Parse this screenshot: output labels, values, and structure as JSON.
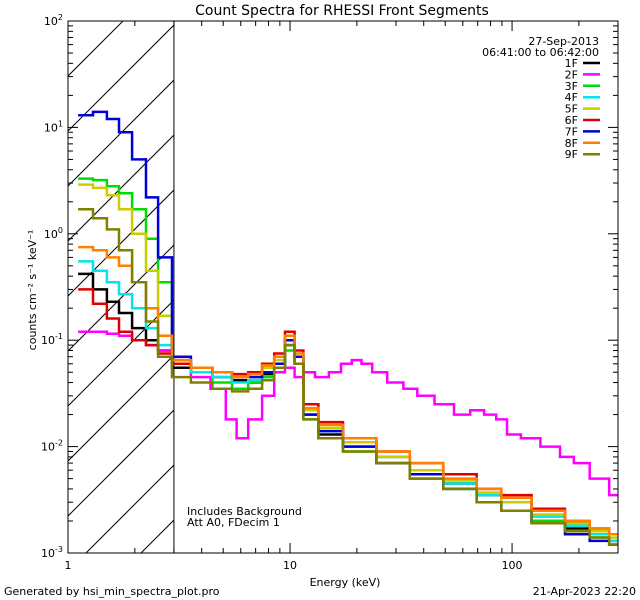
{
  "chart_data": {
    "type": "line",
    "title": "Count Spectra for RHESSI Front Segments",
    "xlabel": "Energy (keV)",
    "ylabel": "counts cm⁻² s⁻¹ keV⁻¹",
    "xscale": "log",
    "yscale": "log",
    "xlim": [
      1,
      300
    ],
    "ylim": [
      0.001,
      100
    ],
    "x_ticks": [
      {
        "value": 1,
        "label": "1"
      },
      {
        "value": 10,
        "label": "10"
      },
      {
        "value": 100,
        "label": "100"
      }
    ],
    "y_ticks": [
      {
        "value": 0.001,
        "base": "10",
        "exp": "-3"
      },
      {
        "value": 0.01,
        "base": "10",
        "exp": "-2"
      },
      {
        "value": 0.1,
        "base": "10",
        "exp": "-1"
      },
      {
        "value": 1,
        "base": "10",
        "exp": "0"
      },
      {
        "value": 10,
        "base": "10",
        "exp": "1"
      },
      {
        "value": 100,
        "base": "10",
        "exp": "2"
      }
    ],
    "hatched_region": [
      1,
      3
    ],
    "legend_position": "top-right",
    "date": "27-Sep-2013",
    "time_range": "06:41:00 to 06:42:00",
    "annotation_lines": [
      "Includes Background",
      "Att A0, FDecim 1"
    ],
    "series": [
      {
        "name": "1F",
        "color": "#000000",
        "x": [
          1.2,
          1.4,
          1.6,
          1.8,
          2.1,
          2.4,
          2.7,
          3.2,
          4,
          5,
          6,
          7,
          8,
          9,
          10,
          11,
          12,
          15,
          20,
          30,
          40,
          60,
          80,
          100,
          150,
          200,
          250,
          300
        ],
        "values": [
          0.42,
          0.3,
          0.23,
          0.18,
          0.13,
          0.1,
          0.08,
          0.055,
          0.05,
          0.045,
          0.042,
          0.04,
          0.048,
          0.06,
          0.09,
          0.06,
          0.02,
          0.013,
          0.01,
          0.008,
          0.006,
          0.0045,
          0.0035,
          0.003,
          0.002,
          0.0017,
          0.0015,
          0.0013
        ]
      },
      {
        "name": "2F",
        "color": "#ff00ff",
        "x": [
          1.2,
          1.4,
          1.6,
          1.8,
          2.1,
          2.4,
          2.7,
          3.2,
          4,
          4.8,
          5.5,
          6,
          7,
          8,
          9,
          10,
          11,
          12,
          14,
          16,
          18,
          20,
          22,
          25,
          30,
          35,
          40,
          50,
          60,
          70,
          80,
          90,
          100,
          120,
          150,
          180,
          200,
          250,
          300
        ],
        "values": [
          0.12,
          0.12,
          0.115,
          0.11,
          0.1,
          0.09,
          0.08,
          0.065,
          0.045,
          0.035,
          0.018,
          0.012,
          0.018,
          0.03,
          0.05,
          0.055,
          0.045,
          0.05,
          0.045,
          0.05,
          0.06,
          0.065,
          0.06,
          0.05,
          0.04,
          0.035,
          0.03,
          0.025,
          0.02,
          0.022,
          0.02,
          0.018,
          0.013,
          0.012,
          0.01,
          0.008,
          0.007,
          0.005,
          0.0035
        ]
      },
      {
        "name": "3F",
        "color": "#00dd00",
        "x": [
          1.2,
          1.4,
          1.6,
          1.8,
          2.1,
          2.4,
          2.7,
          3.2,
          4,
          5,
          6,
          7,
          8,
          9,
          10,
          11,
          12,
          15,
          20,
          30,
          40,
          60,
          80,
          100,
          150,
          200,
          250,
          300
        ],
        "values": [
          3.3,
          3.2,
          2.8,
          2.4,
          1.7,
          0.9,
          0.35,
          0.06,
          0.05,
          0.04,
          0.035,
          0.04,
          0.045,
          0.055,
          0.08,
          0.06,
          0.018,
          0.012,
          0.009,
          0.007,
          0.005,
          0.004,
          0.003,
          0.0025,
          0.002,
          0.0016,
          0.0014,
          0.0012
        ]
      },
      {
        "name": "4F",
        "color": "#00e5ee",
        "x": [
          1.2,
          1.4,
          1.6,
          1.8,
          2.1,
          2.4,
          2.7,
          3.2,
          4,
          5,
          6,
          7,
          8,
          9,
          10,
          11,
          12,
          15,
          20,
          30,
          40,
          60,
          80,
          100,
          150,
          200,
          250,
          300
        ],
        "values": [
          0.55,
          0.45,
          0.35,
          0.27,
          0.2,
          0.13,
          0.09,
          0.06,
          0.05,
          0.045,
          0.04,
          0.042,
          0.05,
          0.06,
          0.1,
          0.07,
          0.02,
          0.014,
          0.01,
          0.008,
          0.006,
          0.0045,
          0.0035,
          0.003,
          0.0022,
          0.0018,
          0.0015,
          0.0013
        ]
      },
      {
        "name": "5F",
        "color": "#cccc00",
        "x": [
          1.2,
          1.4,
          1.6,
          1.8,
          2.1,
          2.4,
          2.7,
          3.2,
          4,
          5,
          6,
          7,
          8,
          9,
          10,
          11,
          12,
          15,
          20,
          30,
          40,
          60,
          80,
          100,
          150,
          200,
          250,
          300
        ],
        "values": [
          2.9,
          2.7,
          2.3,
          1.7,
          1.0,
          0.45,
          0.17,
          0.065,
          0.055,
          0.05,
          0.045,
          0.048,
          0.055,
          0.065,
          0.1,
          0.07,
          0.022,
          0.015,
          0.011,
          0.008,
          0.006,
          0.0048,
          0.0037,
          0.003,
          0.0023,
          0.0019,
          0.0016,
          0.0014
        ]
      },
      {
        "name": "6F",
        "color": "#dd0000",
        "x": [
          1.2,
          1.4,
          1.6,
          1.8,
          2.1,
          2.4,
          2.7,
          3.2,
          4,
          5,
          6,
          7,
          8,
          9,
          10,
          11,
          12,
          15,
          20,
          30,
          40,
          60,
          80,
          100,
          150,
          200,
          250,
          300
        ],
        "values": [
          0.3,
          0.22,
          0.16,
          0.12,
          0.1,
          0.09,
          0.075,
          0.06,
          0.055,
          0.05,
          0.048,
          0.05,
          0.06,
          0.075,
          0.12,
          0.08,
          0.025,
          0.017,
          0.012,
          0.009,
          0.007,
          0.0055,
          0.004,
          0.0035,
          0.0026,
          0.002,
          0.0017,
          0.0015
        ]
      },
      {
        "name": "7F",
        "color": "#0000dd",
        "x": [
          1.2,
          1.4,
          1.6,
          1.8,
          2.1,
          2.4,
          2.7,
          3.2,
          4,
          5,
          6,
          7,
          8,
          9,
          10,
          11,
          12,
          15,
          20,
          30,
          40,
          60,
          80,
          100,
          150,
          200,
          250,
          300
        ],
        "values": [
          13,
          14,
          12,
          9,
          5,
          2.2,
          0.6,
          0.07,
          0.055,
          0.05,
          0.045,
          0.045,
          0.05,
          0.06,
          0.1,
          0.07,
          0.02,
          0.014,
          0.01,
          0.007,
          0.0055,
          0.004,
          0.003,
          0.0025,
          0.0019,
          0.0015,
          0.0013,
          0.0012
        ]
      },
      {
        "name": "8F",
        "color": "#ff7f00",
        "x": [
          1.2,
          1.4,
          1.6,
          1.8,
          2.1,
          2.4,
          2.7,
          3.2,
          4,
          5,
          6,
          7,
          8,
          9,
          10,
          11,
          12,
          15,
          20,
          30,
          40,
          60,
          80,
          100,
          150,
          200,
          250,
          300
        ],
        "values": [
          0.75,
          0.7,
          0.6,
          0.5,
          0.35,
          0.2,
          0.11,
          0.065,
          0.055,
          0.05,
          0.045,
          0.048,
          0.058,
          0.07,
          0.11,
          0.075,
          0.023,
          0.016,
          0.012,
          0.009,
          0.007,
          0.005,
          0.004,
          0.0033,
          0.0025,
          0.002,
          0.0017,
          0.0015
        ]
      },
      {
        "name": "9F",
        "color": "#808000",
        "x": [
          1.2,
          1.4,
          1.6,
          1.8,
          2.1,
          2.4,
          2.7,
          3.2,
          4,
          5,
          6,
          7,
          8,
          9,
          10,
          11,
          12,
          15,
          20,
          30,
          40,
          60,
          80,
          100,
          150,
          200,
          250,
          300
        ],
        "values": [
          1.7,
          1.4,
          1.1,
          0.7,
          0.35,
          0.15,
          0.07,
          0.045,
          0.04,
          0.035,
          0.033,
          0.035,
          0.042,
          0.055,
          0.09,
          0.06,
          0.018,
          0.012,
          0.009,
          0.007,
          0.005,
          0.004,
          0.003,
          0.0025,
          0.0019,
          0.0016,
          0.0014,
          0.0012
        ]
      }
    ]
  },
  "footer": {
    "generated_by": "Generated by hsi_min_spectra_plot.pro",
    "timestamp": "21-Apr-2023 22:20"
  }
}
